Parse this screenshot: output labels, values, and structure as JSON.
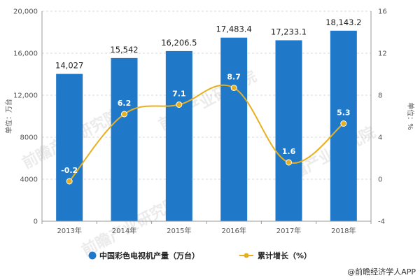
{
  "chart_data": {
    "type": "bar",
    "categories": [
      "2013年",
      "2014年",
      "2015年",
      "2016年",
      "2017年",
      "2018年"
    ],
    "series": [
      {
        "name": "中国彩色电视机产量（万台）",
        "type": "bar",
        "axis": "left",
        "color": "#1f78c8",
        "values": [
          14027,
          15542,
          16206.5,
          17483.4,
          17233.1,
          18143.2
        ],
        "labels": [
          "14,027",
          "15,542",
          "16,206.5",
          "17,483.4",
          "17,233.1",
          "18,143.2"
        ]
      },
      {
        "name": "累计增长（%）",
        "type": "line",
        "axis": "right",
        "color": "#e8b020",
        "values": [
          -0.2,
          6.2,
          7.1,
          8.7,
          1.6,
          5.3
        ],
        "labels": [
          "-0.2",
          "6.2",
          "7.1",
          "8.7",
          "1.6",
          "5.3"
        ]
      }
    ],
    "ylabel_left": "单位：万台",
    "ylabel_right": "单位：%",
    "ylim_left": [
      0,
      20000
    ],
    "yticks_left": [
      0,
      4000,
      8000,
      12000,
      16000,
      20000
    ],
    "ytick_labels_left": [
      "0",
      "4000",
      "8000",
      "12,000",
      "16,000",
      "20,000"
    ],
    "ylim_right": [
      -4,
      16
    ],
    "yticks_right": [
      -4,
      0,
      4,
      8,
      12,
      16
    ],
    "ytick_labels_right": [
      "-4",
      "0",
      "4",
      "8",
      "12",
      "16"
    ],
    "grid": true,
    "legend": "bottom"
  },
  "watermark": "前瞻产业研究院",
  "credit": "@前瞻经济学人APP"
}
